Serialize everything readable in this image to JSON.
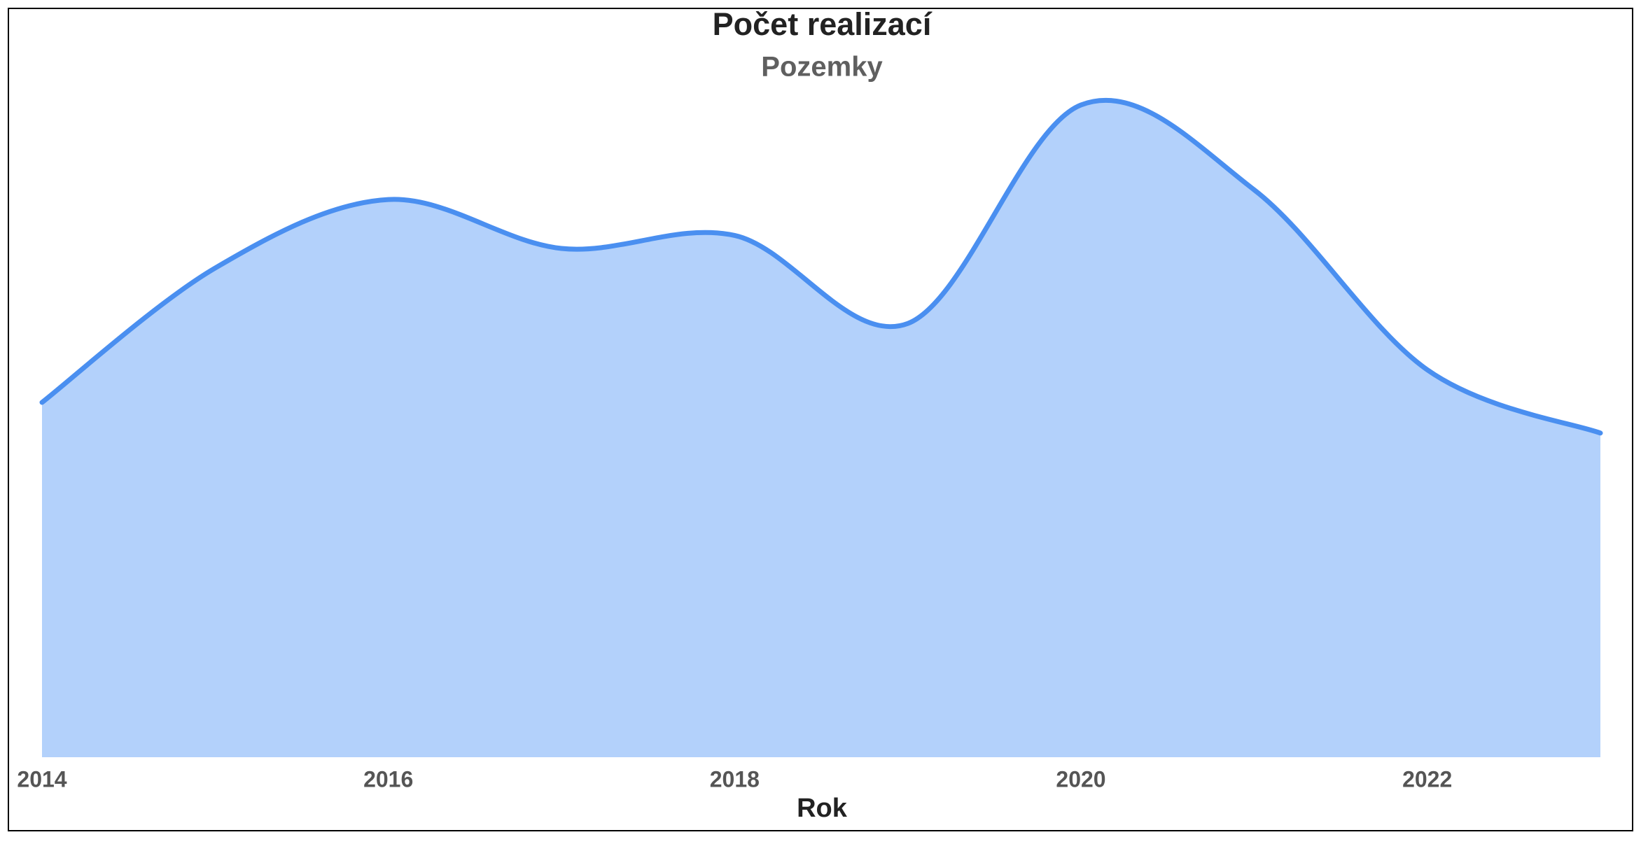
{
  "chart_data": {
    "type": "area",
    "title": "Počet realizací",
    "subtitle": "Pozemky",
    "x_label": "Rok",
    "x": [
      2014,
      2015,
      2016,
      2017,
      2018,
      2019,
      2020,
      2021,
      2022,
      2023
    ],
    "series": [
      {
        "color": "#4a8ff0",
        "fill": "#b3d1fb",
        "values": [
          54.4,
          75,
          85.5,
          78,
          80,
          66.5,
          100,
          87,
          59.4,
          49.7
        ]
      }
    ],
    "xlim": [
      2014,
      2023
    ],
    "xticks": [
      2014,
      2016,
      2018,
      2020,
      2022
    ],
    "ylim": [
      0,
      100
    ],
    "grid": false,
    "curve": "smooth"
  }
}
